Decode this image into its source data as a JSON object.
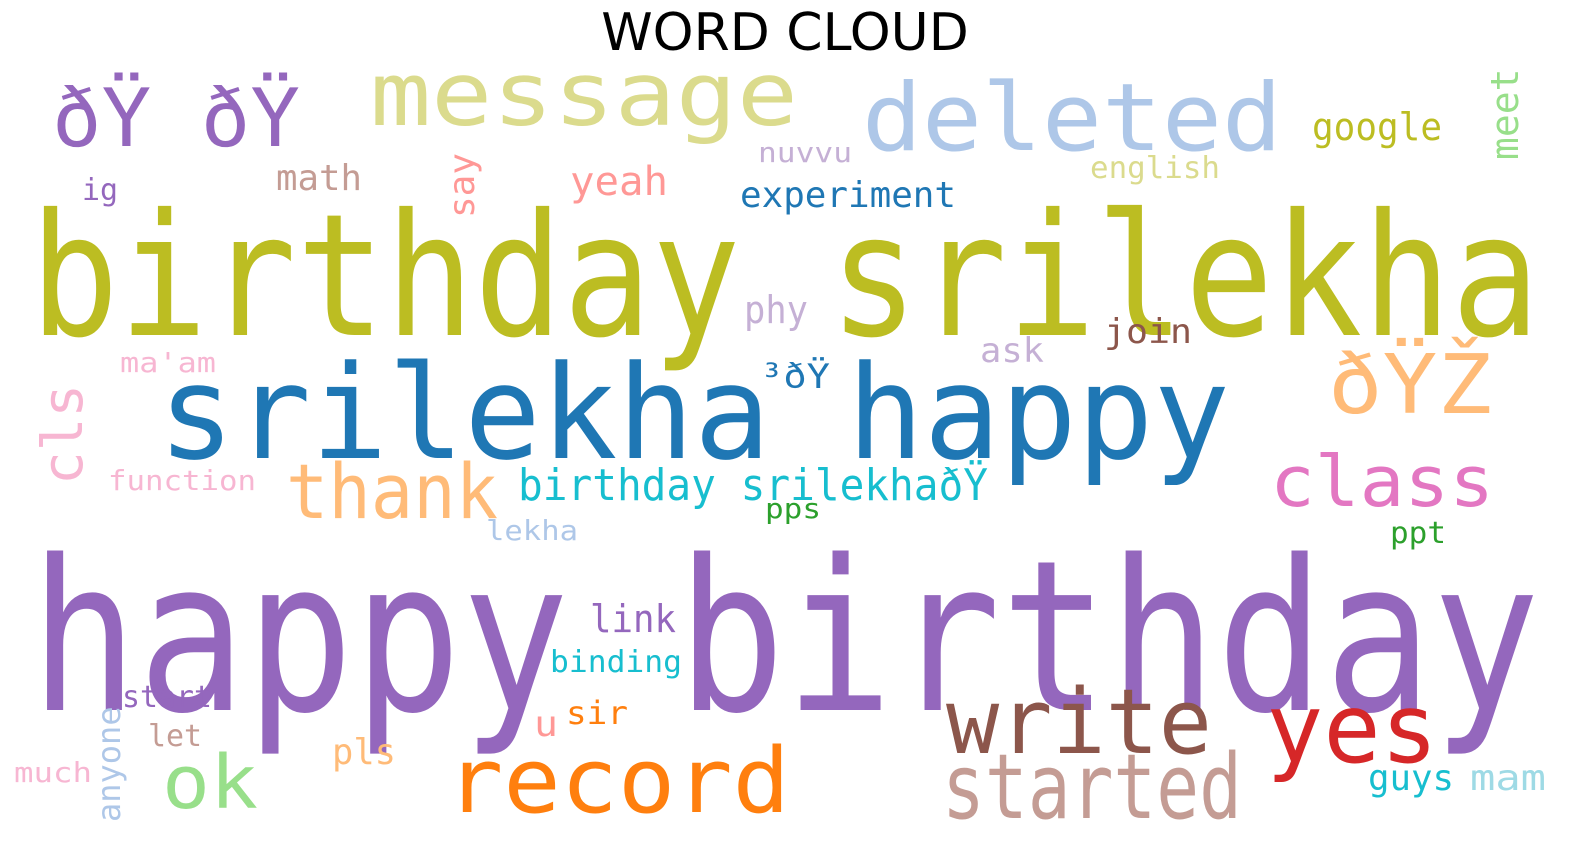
{
  "title": "WORD CLOUD",
  "words": [
    {
      "text": "happy birthday",
      "color": "#9467bd"
    },
    {
      "text": "birthday srilekha",
      "color": "#bcbd22"
    },
    {
      "text": "srilekha happy",
      "color": "#1f77b4"
    },
    {
      "text": "message",
      "color": "#dbdb8d"
    },
    {
      "text": "deleted",
      "color": "#aec7e8"
    },
    {
      "text": "ðŸ ðŸ",
      "color": "#9467bd"
    },
    {
      "text": "google",
      "color": "#bcbd22"
    },
    {
      "text": "meet",
      "color": "#98df8a"
    },
    {
      "text": "nuvvu",
      "color": "#c5b0d5"
    },
    {
      "text": "english",
      "color": "#dbdb8d"
    },
    {
      "text": "math",
      "color": "#c49c94"
    },
    {
      "text": "say",
      "color": "#ff9896"
    },
    {
      "text": "yeah",
      "color": "#ff9896"
    },
    {
      "text": "experiment",
      "color": "#1f77b4"
    },
    {
      "text": "ig",
      "color": "#9467bd"
    },
    {
      "text": "phy",
      "color": "#c5b0d5"
    },
    {
      "text": "join",
      "color": "#8c564b"
    },
    {
      "text": "ask",
      "color": "#c5b0d5"
    },
    {
      "text": "ma'am",
      "color": "#f7b6d2"
    },
    {
      "text": "³ðŸ",
      "color": "#1f77b4"
    },
    {
      "text": "ðŸŽ",
      "color": "#ffbb78"
    },
    {
      "text": "cls",
      "color": "#f7b6d2"
    },
    {
      "text": "thank",
      "color": "#ffbb78"
    },
    {
      "text": "function",
      "color": "#f7b6d2"
    },
    {
      "text": "birthday srilekhaðŸ",
      "color": "#17becf"
    },
    {
      "text": "class",
      "color": "#e377c2"
    },
    {
      "text": "pps",
      "color": "#2ca02c"
    },
    {
      "text": "lekha",
      "color": "#aec7e8"
    },
    {
      "text": "ppt",
      "color": "#2ca02c"
    },
    {
      "text": "link",
      "color": "#9467bd"
    },
    {
      "text": "binding",
      "color": "#17becf"
    },
    {
      "text": "write",
      "color": "#8c564b"
    },
    {
      "text": "yes",
      "color": "#d62728"
    },
    {
      "text": "start",
      "color": "#9467bd"
    },
    {
      "text": "anyone",
      "color": "#aec7e8"
    },
    {
      "text": "let",
      "color": "#c49c94"
    },
    {
      "text": "u",
      "color": "#ff9896"
    },
    {
      "text": "sir",
      "color": "#ff7f0e"
    },
    {
      "text": "ok",
      "color": "#98df8a"
    },
    {
      "text": "pls",
      "color": "#ffbb78"
    },
    {
      "text": "much",
      "color": "#f7b6d2"
    },
    {
      "text": "record",
      "color": "#ff7f0e"
    },
    {
      "text": "started",
      "color": "#c49c94"
    },
    {
      "text": "guys",
      "color": "#17becf"
    },
    {
      "text": "mam",
      "color": "#9edae5"
    }
  ]
}
